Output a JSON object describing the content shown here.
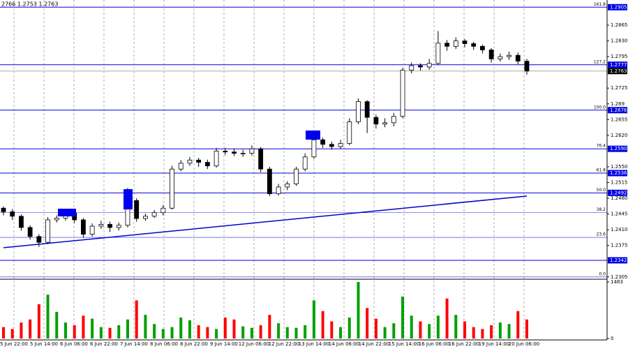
{
  "chart_data": {
    "type": "candlestick",
    "title": "2766 1.2753 1.2763",
    "x_labels": [
      "5 Jun 22:00",
      "5 Jun 14:00",
      "6 Jun 06:00",
      "6 Jun 22:00",
      "7 Jun 14:00",
      "8 Jun 06:00",
      "8 Jun 22:00",
      "9 Jun 14:00",
      "12 Jun 06:00",
      "12 Jun 22:00",
      "13 Jun 14:00",
      "14 Jun 06:00",
      "14 Jun 22:00",
      "15 Jun 14:00",
      "16 Jun 06:00",
      "16 Jun 22:00",
      "19 Jun 14:00",
      "20 Jun 06:00"
    ],
    "open": [
      1.2458,
      1.245,
      1.244,
      1.2415,
      1.2395,
      1.2382,
      1.2432,
      1.2436,
      1.2447,
      1.2432,
      1.24,
      1.2418,
      1.2422,
      1.2415,
      1.242,
      1.2475,
      1.2435,
      1.244,
      1.2448,
      1.2458,
      1.2545,
      1.2558,
      1.2565,
      1.256,
      1.2552,
      1.2585,
      1.2583,
      1.258,
      1.258,
      1.259,
      1.2545,
      1.249,
      1.2505,
      1.2512,
      1.2545,
      1.2572,
      1.261,
      1.26,
      1.2595,
      1.2602,
      1.265,
      1.2695,
      1.266,
      1.2645,
      1.2648,
      1.2662,
      1.2765,
      1.2775,
      1.2772,
      1.278,
      1.2825,
      1.2818,
      1.283,
      1.2824,
      1.2818,
      1.281,
      1.279,
      1.2795,
      1.2798,
      1.2785
    ],
    "high": [
      1.2462,
      1.2456,
      1.2444,
      1.242,
      1.24,
      1.2438,
      1.2442,
      1.2452,
      1.2452,
      1.2436,
      1.2424,
      1.243,
      1.2428,
      1.2426,
      1.2503,
      1.248,
      1.2446,
      1.2454,
      1.2465,
      1.2552,
      1.2565,
      1.2572,
      1.257,
      1.2566,
      1.2592,
      1.2592,
      1.259,
      1.2588,
      1.2598,
      1.2594,
      1.255,
      1.2512,
      1.2518,
      1.255,
      1.258,
      1.2625,
      1.2615,
      1.2606,
      1.261,
      1.2658,
      1.2702,
      1.2698,
      1.2666,
      1.2658,
      1.267,
      1.277,
      1.2782,
      1.278,
      1.279,
      1.2852,
      1.2832,
      1.2838,
      1.2834,
      1.2828,
      1.2822,
      1.2814,
      1.2802,
      1.2806,
      1.2804,
      1.279
    ],
    "low": [
      1.2442,
      1.2432,
      1.2408,
      1.2388,
      1.2372,
      1.2378,
      1.2426,
      1.243,
      1.2425,
      1.2392,
      1.2395,
      1.2412,
      1.2405,
      1.2408,
      1.2415,
      1.2428,
      1.243,
      1.2436,
      1.2442,
      1.2455,
      1.254,
      1.2552,
      1.255,
      1.2545,
      1.2548,
      1.2576,
      1.2574,
      1.2572,
      1.2575,
      1.2538,
      1.2485,
      1.2486,
      1.2498,
      1.2508,
      1.254,
      1.2568,
      1.2592,
      1.2588,
      1.259,
      1.2598,
      1.2645,
      1.2625,
      1.2635,
      1.2638,
      1.264,
      1.2658,
      1.2758,
      1.2764,
      1.2766,
      1.2776,
      1.2808,
      1.2812,
      1.2816,
      1.281,
      1.2802,
      1.2782,
      1.2784,
      1.2788,
      1.2778,
      1.2755
    ],
    "close": [
      1.245,
      1.244,
      1.2415,
      1.2395,
      1.2382,
      1.2432,
      1.2436,
      1.2447,
      1.2432,
      1.24,
      1.2418,
      1.2422,
      1.2415,
      1.242,
      1.2475,
      1.2435,
      1.244,
      1.2448,
      1.2458,
      1.2545,
      1.2558,
      1.2565,
      1.256,
      1.2552,
      1.2585,
      1.2583,
      1.258,
      1.258,
      1.259,
      1.2545,
      1.249,
      1.2505,
      1.2512,
      1.2545,
      1.2572,
      1.261,
      1.26,
      1.2595,
      1.2602,
      1.265,
      1.2695,
      1.266,
      1.2645,
      1.2648,
      1.2662,
      1.2765,
      1.2775,
      1.2772,
      1.278,
      1.2825,
      1.2818,
      1.283,
      1.2824,
      1.2818,
      1.281,
      1.279,
      1.2795,
      1.2798,
      1.2785,
      1.2763
    ],
    "volume": [
      300,
      250,
      420,
      500,
      900,
      1150,
      700,
      420,
      350,
      600,
      520,
      300,
      280,
      350,
      500,
      1000,
      620,
      380,
      250,
      300,
      550,
      480,
      350,
      300,
      250,
      550,
      500,
      320,
      280,
      350,
      620,
      400,
      300,
      280,
      350,
      1000,
      720,
      450,
      300,
      550,
      1483,
      800,
      520,
      300,
      400,
      1100,
      600,
      450,
      380,
      600,
      1050,
      620,
      450,
      300,
      250,
      350,
      420,
      380,
      720,
      500
    ],
    "ylim": [
      1.23,
      1.2921
    ],
    "yticks": [
      1.2865,
      {
        "value": 1.283,
        "label": "1.2830"
      },
      1.2795,
      1.2725,
      1.269,
      1.2655,
      {
        "value": 1.262,
        "label": "1.2620"
      },
      {
        "value": 1.255,
        "label": "1.2550"
      },
      1.2515,
      {
        "value": 1.248,
        "label": "1.2480"
      },
      1.2445,
      {
        "value": 1.241,
        "label": "1.2410"
      },
      1.2375,
      1.2305
    ],
    "volume_ylim": [
      0,
      1483
    ],
    "volume_yticks": [
      0,
      1483
    ],
    "levels": [
      {
        "fib": "161.8",
        "price": 1.2905,
        "boxed": true
      },
      {
        "fib": "127.2",
        "price": 1.2777,
        "boxed": true
      },
      {
        "fib": "100.0",
        "price": 1.2676,
        "boxed": true
      },
      {
        "fib": "76.4",
        "price": {
          "value": 1.259,
          "label": "1.2590"
        },
        "boxed": true
      },
      {
        "fib": "61.8",
        "price": 1.2536,
        "boxed": true
      },
      {
        "fib": "50.0",
        "price": 1.2492,
        "boxed": true
      },
      {
        "fib": "38.2",
        "price": 1.2448,
        "boxed": false
      },
      {
        "fib": "23.6",
        "price": 1.2393,
        "boxed": false
      },
      {
        "fib": "0.0",
        "price": 1.2305,
        "boxed": false
      },
      {
        "price": 1.2342,
        "boxed": true
      }
    ],
    "last_price": 1.2763,
    "trend_line": [
      1.237,
      1.2485
    ],
    "up_color": "#00a000",
    "down_color": "#ff0000",
    "level_color": "#0000e0",
    "trend_color": "#0000cc"
  }
}
